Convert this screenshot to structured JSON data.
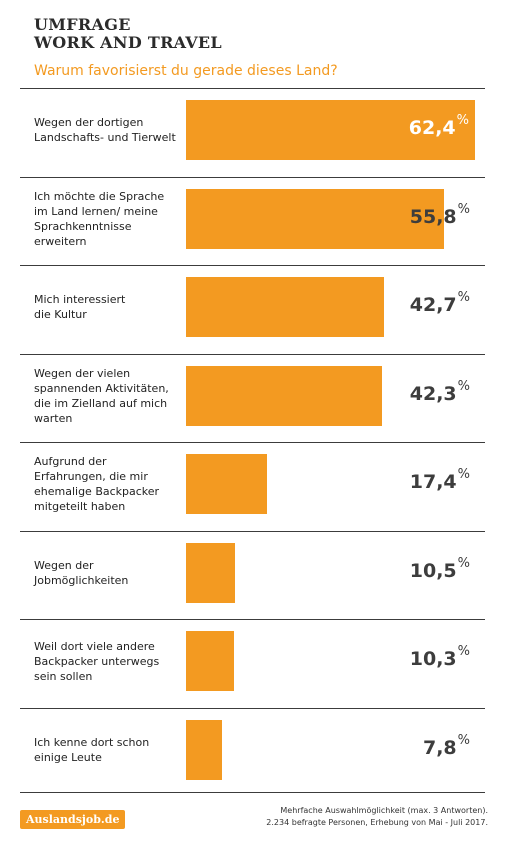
{
  "header": {
    "title_line1": "UMFRAGE",
    "title_line2": "WORK AND TRAVEL",
    "subtitle": "Warum favorisierst du gerade dieses Land?"
  },
  "chart_data": {
    "type": "bar",
    "orientation": "horizontal",
    "categories": [
      "Wegen der dortigen Landschafts- und Tierwelt",
      "Ich möchte die Sprache im Land lernen/ meine Sprachkenntnisse erweitern",
      "Mich interessiert die Kultur",
      "Wegen der vielen spannenden Aktivitäten, die im Zielland auf mich warten",
      "Aufgrund der Erfahrungen, die mir ehemalige Backpacker mitgeteilt haben",
      "Wegen der Jobmöglichkeiten",
      "Weil dort viele andere Backpacker unterwegs sein sollen",
      "Ich kenne dort schon einige Leute"
    ],
    "category_lines": [
      [
        "Wegen der dortigen",
        "Landschafts- und Tierwelt"
      ],
      [
        "Ich möchte die Sprache",
        "im Land lernen/ meine",
        "Sprachkenntnisse",
        "erweitern"
      ],
      [
        "Mich interessiert",
        "die Kultur"
      ],
      [
        "Wegen der vielen",
        "spannenden Aktivitäten,",
        "die im Zielland auf mich",
        "warten"
      ],
      [
        "Aufgrund der",
        "Erfahrungen, die mir",
        "ehemalige Backpacker",
        "mitgeteilt haben"
      ],
      [
        "Wegen der",
        "Jobmöglichkeiten"
      ],
      [
        "Weil dort viele andere",
        "Backpacker unterwegs",
        "sein sollen"
      ],
      [
        "Ich kenne dort schon",
        "einige Leute"
      ]
    ],
    "values": [
      62.4,
      55.8,
      42.7,
      42.3,
      17.4,
      10.5,
      10.3,
      7.8
    ],
    "value_labels": [
      "62,4",
      "55,8",
      "42,7",
      "42,3",
      "17,4",
      "10,5",
      "10,3",
      "7,8"
    ],
    "unit": "%",
    "bar_color": "#f39a21",
    "grid": false,
    "legend": "none"
  },
  "footer": {
    "logo": "Auslandsjob.de",
    "note_line1": "Mehrfache Auswahlmöglichkeit (max. 3 Antworten).",
    "note_line2": "2.234 befragte Personen, Erhebung von Mai - Juli 2017."
  }
}
